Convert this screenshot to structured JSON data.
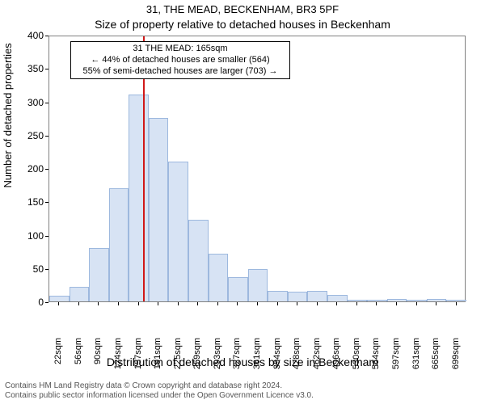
{
  "title1": "31, THE MEAD, BECKENHAM, BR3 5PF",
  "title2": "Size of property relative to detached houses in Beckenham",
  "ylabel": "Number of detached properties",
  "xlabel": "Distribution of detached houses by size in Beckenham",
  "footer_line1": "Contains HM Land Registry data © Crown copyright and database right 2024.",
  "footer_line2": "Contains public sector information licensed under the Open Government Licence v3.0.",
  "chart": {
    "type": "histogram",
    "background_color": "#ffffff",
    "axis_color": "#808080",
    "bar_fill": "#d7e3f4",
    "bar_stroke": "#9db8de",
    "ylim": [
      0,
      400
    ],
    "ytick_step": 50,
    "x_categories": [
      "22sqm",
      "56sqm",
      "90sqm",
      "124sqm",
      "157sqm",
      "191sqm",
      "225sqm",
      "259sqm",
      "293sqm",
      "327sqm",
      "361sqm",
      "394sqm",
      "428sqm",
      "462sqm",
      "496sqm",
      "530sqm",
      "564sqm",
      "597sqm",
      "631sqm",
      "665sqm",
      "699sqm"
    ],
    "values": [
      8,
      22,
      80,
      170,
      310,
      275,
      210,
      122,
      72,
      36,
      48,
      16,
      14,
      16,
      10,
      2,
      2,
      4,
      2,
      4,
      2
    ],
    "marker": {
      "x_value_sqm": 165,
      "color": "#d11919"
    },
    "annotation": {
      "lines": [
        "31 THE MEAD: 165sqm",
        "← 44% of detached houses are smaller (564)",
        "55% of semi-detached houses are larger (703) →"
      ],
      "border_color": "#000000",
      "background_color": "#ffffff",
      "fontsize": 11
    }
  }
}
